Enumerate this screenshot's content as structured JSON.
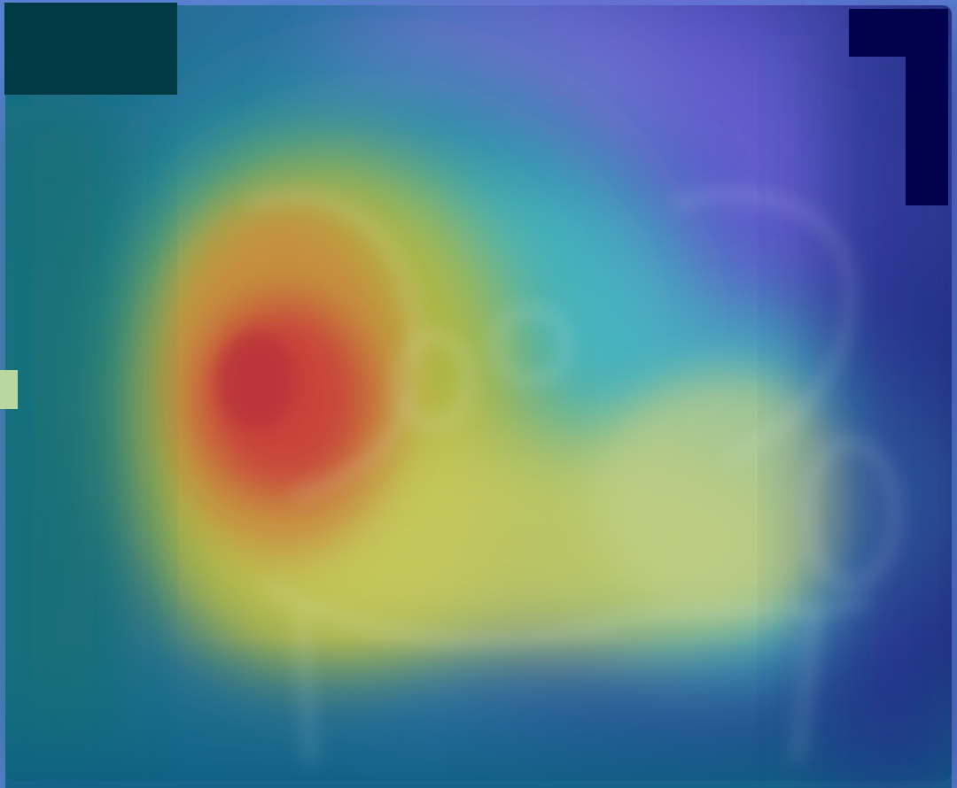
{
  "image": {
    "subject": "xray-heatmap-overlay",
    "colormap": "jet",
    "colors": {
      "frame_background": "#243277",
      "low_activation": "#2f2f9a",
      "mid_low_activation": "#0f7f8f",
      "mid_activation": "#56c7c9",
      "mid_high_activation": "#c9c95a",
      "high_activation": "#d24a3a",
      "redaction_block": "#003a45",
      "redaction_block_dark": "#00004d",
      "side_marker": "#b8d8a0"
    },
    "peak_activation_region": "left-hip"
  }
}
